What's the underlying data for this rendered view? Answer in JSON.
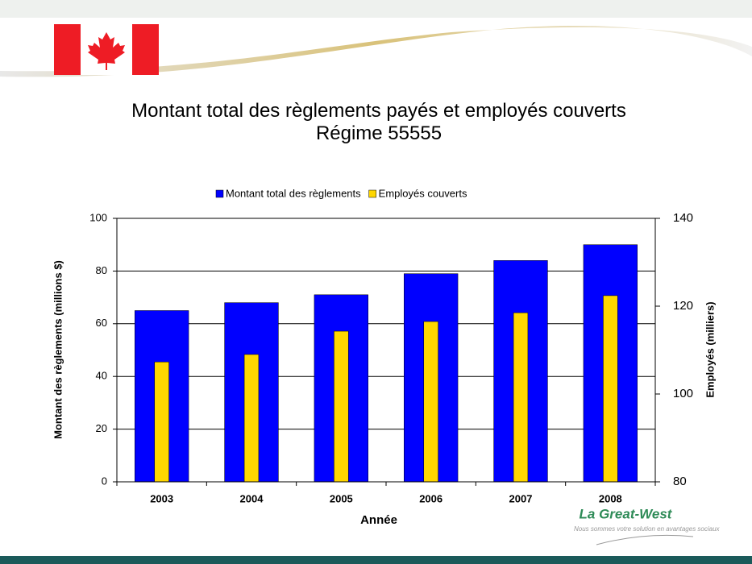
{
  "chart_data": {
    "type": "bar",
    "title": "Montant total des règlements payés et employés couverts",
    "subtitle": "Régime 55555",
    "x_label": "Année",
    "y_label": "Montant des règlements (millions $)",
    "y2_label": "Employés (milliers)",
    "categories": [
      "2003",
      "2004",
      "2005",
      "2006",
      "2007",
      "2008"
    ],
    "series": [
      {
        "name": "Montant total des règlements",
        "color": "#0000ff",
        "values": [
          65,
          68,
          71,
          79,
          84,
          90
        ]
      },
      {
        "name": "Employés couverts",
        "color": "#ffd700",
        "axis": "y2",
        "values": [
          107.3,
          109,
          114.3,
          116.5,
          118.5,
          122.4
        ]
      }
    ],
    "ylim": [
      0,
      100
    ],
    "yticks": [
      0,
      20,
      40,
      60,
      80,
      100
    ],
    "y2lim": [
      80,
      140
    ],
    "y2ticks": [
      80,
      100,
      120,
      140
    ],
    "grid": true,
    "legend": "top"
  },
  "brand": {
    "name": "La Great-West",
    "tagline": "Nous sommes votre solution en avantages sociaux"
  }
}
